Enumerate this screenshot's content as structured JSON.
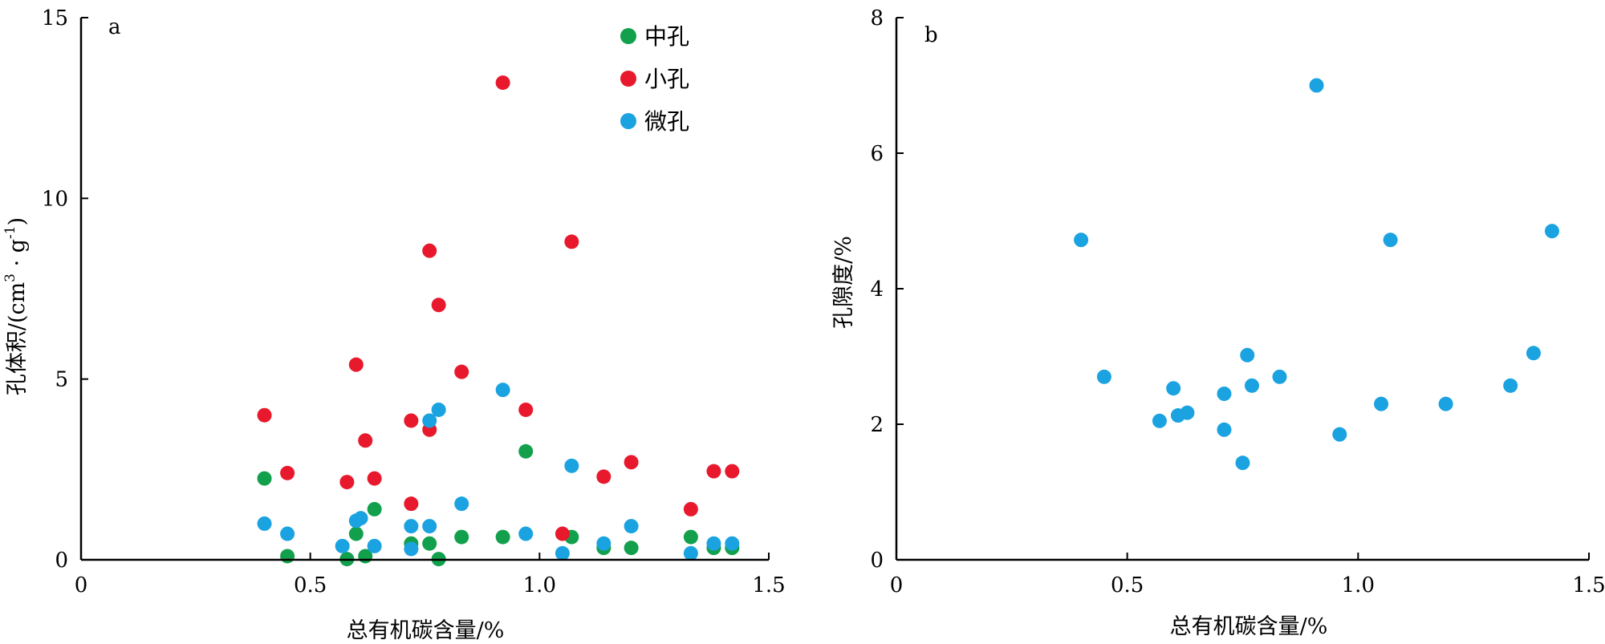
{
  "chart_data": [
    {
      "panel": "a",
      "type": "scatter",
      "xlabel": "总有机碳含量/%",
      "ylabel": {
        "main": "孔体积/(cm",
        "sup1": "3",
        "mid": " · g",
        "sup2": "-1",
        "end": ")"
      },
      "xlim": [
        0,
        1.5
      ],
      "ylim": [
        0,
        15
      ],
      "xticks": [
        0,
        0.5,
        1.0,
        1.5
      ],
      "xtick_labels": [
        "0",
        "0.5",
        "1.0",
        "1.5"
      ],
      "yticks": [
        0,
        5,
        10,
        15
      ],
      "ytick_labels": [
        "0",
        "5",
        "10",
        "15"
      ],
      "legend_position": "top-right",
      "series": [
        {
          "name": "中孔",
          "color": "#12a04c",
          "x": [
            0.4,
            0.45,
            0.58,
            0.6,
            0.62,
            0.64,
            0.72,
            0.76,
            0.78,
            0.83,
            0.92,
            0.97,
            1.07,
            1.14,
            1.2,
            1.33,
            1.38,
            1.42
          ],
          "y": [
            2.25,
            0.1,
            0.02,
            0.72,
            0.1,
            1.4,
            0.45,
            0.45,
            0.02,
            0.63,
            0.63,
            3.0,
            0.63,
            0.33,
            0.33,
            0.63,
            0.33,
            0.33
          ]
        },
        {
          "name": "小孔",
          "color": "#e8192c",
          "x": [
            0.4,
            0.45,
            0.58,
            0.6,
            0.62,
            0.64,
            0.72,
            0.72,
            0.76,
            0.76,
            0.78,
            0.83,
            0.92,
            0.97,
            1.05,
            1.07,
            1.14,
            1.2,
            1.33,
            1.38,
            1.42
          ],
          "y": [
            4.0,
            2.4,
            2.15,
            5.4,
            3.3,
            2.25,
            1.55,
            3.85,
            3.6,
            8.55,
            7.05,
            5.2,
            13.2,
            4.15,
            0.72,
            8.8,
            2.3,
            2.7,
            1.4,
            2.45,
            2.45
          ]
        },
        {
          "name": "微孔",
          "color": "#1aa3e0",
          "x": [
            0.4,
            0.45,
            0.57,
            0.6,
            0.61,
            0.64,
            0.72,
            0.72,
            0.76,
            0.76,
            0.78,
            0.83,
            0.92,
            0.97,
            1.05,
            1.07,
            1.14,
            1.2,
            1.33,
            1.38,
            1.42
          ],
          "y": [
            1.0,
            0.72,
            0.38,
            1.08,
            1.15,
            0.38,
            0.93,
            0.3,
            0.93,
            3.85,
            4.15,
            1.55,
            4.7,
            0.72,
            0.18,
            2.6,
            0.45,
            0.93,
            0.18,
            0.45,
            0.45
          ]
        }
      ]
    },
    {
      "panel": "b",
      "type": "scatter",
      "xlabel": "总有机碳含量/%",
      "ylabel": "孔隙度/%",
      "xlim": [
        0,
        1.5
      ],
      "ylim": [
        0,
        8
      ],
      "xticks": [
        0,
        0.5,
        1.0,
        1.5
      ],
      "xtick_labels": [
        "0",
        "0.5",
        "1.0",
        "1.5"
      ],
      "yticks": [
        0,
        2,
        4,
        6,
        8
      ],
      "ytick_labels": [
        "0",
        "2",
        "4",
        "6",
        "8"
      ],
      "series": [
        {
          "color": "#1aa3e0",
          "x": [
            0.4,
            0.45,
            0.57,
            0.6,
            0.61,
            0.63,
            0.71,
            0.71,
            0.75,
            0.76,
            0.77,
            0.83,
            0.91,
            0.96,
            1.05,
            1.07,
            1.19,
            1.33,
            1.38,
            1.42
          ],
          "y": [
            4.72,
            2.7,
            2.05,
            2.53,
            2.13,
            2.17,
            2.45,
            1.92,
            1.43,
            3.02,
            2.57,
            2.7,
            7.0,
            1.85,
            2.3,
            4.72,
            2.3,
            2.57,
            3.05,
            4.85
          ]
        }
      ]
    }
  ]
}
